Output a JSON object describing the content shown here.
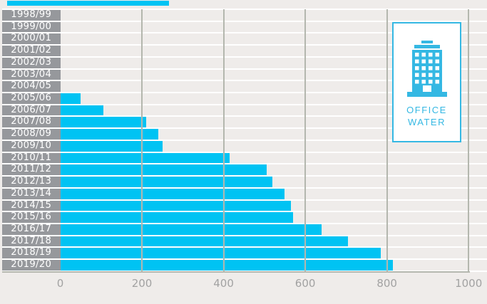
{
  "chart_data": {
    "type": "bar",
    "orientation": "horizontal",
    "categories": [
      "1998/99",
      "1999/00",
      "2000/01",
      "2001/02",
      "2002/03",
      "2003/04",
      "2004/05",
      "2005/06",
      "2006/07",
      "2007/08",
      "2008/09",
      "2009/10",
      "2010/11",
      "2011/12",
      "2012/13",
      "2013/14",
      "2014/15",
      "2015/16",
      "2016/17",
      "2017/18",
      "2018/19",
      "2019/20"
    ],
    "values": [
      0,
      0,
      0,
      0,
      0,
      0,
      0,
      50,
      105,
      210,
      240,
      250,
      415,
      505,
      520,
      550,
      565,
      570,
      640,
      705,
      785,
      815
    ],
    "x_ticks": [
      0,
      200,
      400,
      600,
      800,
      1000
    ],
    "xlim": [
      0,
      1000
    ],
    "grid": "vertical-only",
    "legend_position": "top-right",
    "legend": {
      "icon": "office-building-icon",
      "line1": "OFFICE",
      "line2": "WATER"
    },
    "colors": {
      "bar": "#00c3f3",
      "category_label_box": "#96989c",
      "category_label_text": "#ffffff",
      "gridline": "#b4b7ae",
      "tick_text": "#a2a2a2",
      "background": "#efecea",
      "row_separator": "#ffffff",
      "legend_accent": "#35b8e3",
      "top_accent_strip": "#00c3f3"
    }
  }
}
